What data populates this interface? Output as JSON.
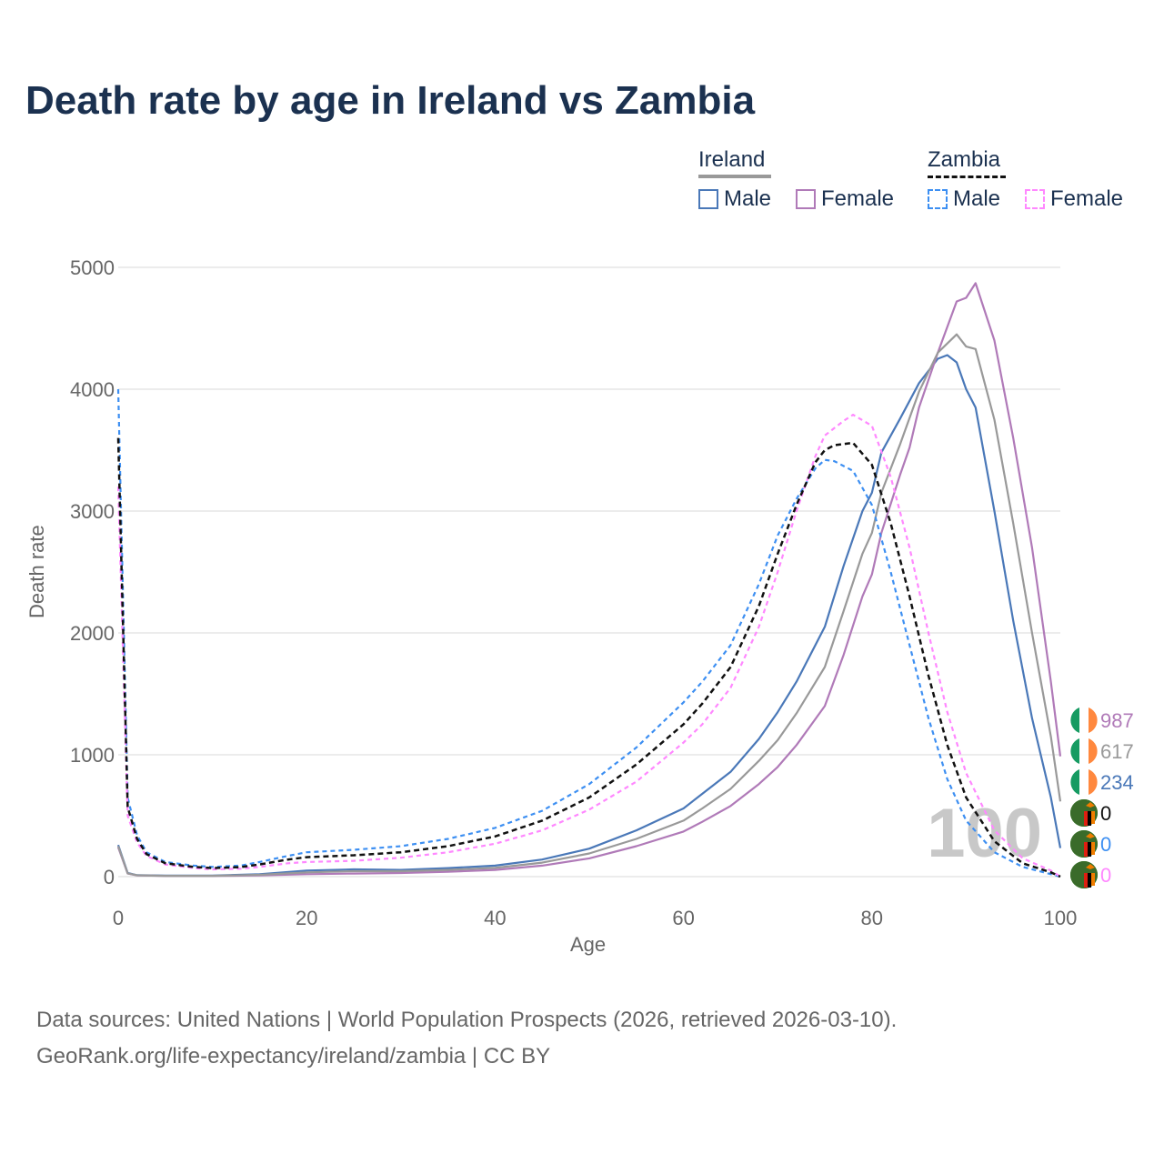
{
  "title": "Death rate by age in Ireland vs Zambia",
  "legend": {
    "ireland": {
      "label": "Ireland",
      "male": "Male",
      "female": "Female"
    },
    "zambia": {
      "label": "Zambia",
      "male": "Male",
      "female": "Female"
    }
  },
  "colors": {
    "ireland_male": "#4a78b8",
    "ireland_female": "#b07ab8",
    "ireland_total": "#999999",
    "zambia_male": "#3d8ff2",
    "zambia_female": "#ff88ff",
    "zambia_total": "#111111",
    "text": "#1b3150",
    "axis_text": "#666666",
    "grid": "#e6e6e6"
  },
  "end_labels": {
    "ireland_female": "987",
    "ireland_total": "617",
    "ireland_male": "234",
    "zambia_total": "0",
    "zambia_male": "0",
    "zambia_female": "0"
  },
  "year_watermark": "100",
  "source_line1": "Data sources: United Nations | World Population Prospects (2026, retrieved 2026-03-10).",
  "source_line2": "GeoRank.org/life-expectancy/ireland/zambia | CC BY",
  "chart_data": {
    "type": "line",
    "xlabel": "Age",
    "ylabel": "Death rate",
    "xlim": [
      0,
      100
    ],
    "ylim": [
      0,
      5000
    ],
    "x_ticks": [
      "0",
      "20",
      "40",
      "60",
      "80",
      "100"
    ],
    "y_ticks": [
      "0",
      "1000",
      "2000",
      "3000",
      "4000",
      "5000"
    ],
    "series": [
      {
        "name": "Ireland Male",
        "key": "ireland_male",
        "dash": false,
        "points": [
          [
            0,
            260
          ],
          [
            1,
            30
          ],
          [
            2,
            12
          ],
          [
            5,
            8
          ],
          [
            10,
            8
          ],
          [
            15,
            20
          ],
          [
            20,
            50
          ],
          [
            25,
            60
          ],
          [
            30,
            55
          ],
          [
            35,
            70
          ],
          [
            40,
            90
          ],
          [
            45,
            140
          ],
          [
            50,
            230
          ],
          [
            55,
            380
          ],
          [
            60,
            560
          ],
          [
            62,
            680
          ],
          [
            65,
            860
          ],
          [
            68,
            1130
          ],
          [
            70,
            1350
          ],
          [
            72,
            1600
          ],
          [
            75,
            2050
          ],
          [
            77,
            2550
          ],
          [
            79,
            3000
          ],
          [
            80,
            3150
          ],
          [
            81,
            3480
          ],
          [
            83,
            3760
          ],
          [
            85,
            4050
          ],
          [
            87,
            4250
          ],
          [
            88,
            4280
          ],
          [
            89,
            4220
          ],
          [
            90,
            4000
          ],
          [
            91,
            3850
          ],
          [
            93,
            3000
          ],
          [
            95,
            2100
          ],
          [
            97,
            1300
          ],
          [
            99,
            650
          ],
          [
            100,
            234
          ]
        ]
      },
      {
        "name": "Ireland Female",
        "key": "ireland_female",
        "dash": false,
        "points": [
          [
            0,
            240
          ],
          [
            1,
            25
          ],
          [
            2,
            10
          ],
          [
            5,
            6
          ],
          [
            10,
            6
          ],
          [
            15,
            10
          ],
          [
            20,
            20
          ],
          [
            25,
            25
          ],
          [
            30,
            30
          ],
          [
            35,
            40
          ],
          [
            40,
            55
          ],
          [
            45,
            90
          ],
          [
            50,
            150
          ],
          [
            55,
            250
          ],
          [
            60,
            370
          ],
          [
            62,
            450
          ],
          [
            65,
            580
          ],
          [
            68,
            760
          ],
          [
            70,
            900
          ],
          [
            72,
            1080
          ],
          [
            75,
            1400
          ],
          [
            77,
            1820
          ],
          [
            79,
            2300
          ],
          [
            80,
            2480
          ],
          [
            81,
            2820
          ],
          [
            83,
            3300
          ],
          [
            84,
            3520
          ],
          [
            85,
            3850
          ],
          [
            87,
            4300
          ],
          [
            89,
            4720
          ],
          [
            90,
            4750
          ],
          [
            91,
            4870
          ],
          [
            93,
            4400
          ],
          [
            95,
            3600
          ],
          [
            97,
            2700
          ],
          [
            99,
            1600
          ],
          [
            100,
            987
          ]
        ]
      },
      {
        "name": "Ireland Total",
        "key": "ireland_total",
        "dash": false,
        "points": [
          [
            0,
            250
          ],
          [
            1,
            27
          ],
          [
            2,
            11
          ],
          [
            5,
            7
          ],
          [
            10,
            7
          ],
          [
            15,
            15
          ],
          [
            20,
            35
          ],
          [
            25,
            45
          ],
          [
            30,
            45
          ],
          [
            35,
            55
          ],
          [
            40,
            72
          ],
          [
            45,
            115
          ],
          [
            50,
            190
          ],
          [
            55,
            310
          ],
          [
            60,
            460
          ],
          [
            62,
            560
          ],
          [
            65,
            720
          ],
          [
            68,
            950
          ],
          [
            70,
            1120
          ],
          [
            72,
            1340
          ],
          [
            75,
            1720
          ],
          [
            77,
            2180
          ],
          [
            79,
            2650
          ],
          [
            80,
            2820
          ],
          [
            81,
            3150
          ],
          [
            83,
            3550
          ],
          [
            85,
            3980
          ],
          [
            87,
            4300
          ],
          [
            89,
            4450
          ],
          [
            90,
            4350
          ],
          [
            91,
            4330
          ],
          [
            93,
            3750
          ],
          [
            95,
            2900
          ],
          [
            97,
            2000
          ],
          [
            99,
            1150
          ],
          [
            100,
            617
          ]
        ]
      },
      {
        "name": "Zambia Male",
        "key": "zambia_male",
        "dash": true,
        "points": [
          [
            0,
            4000
          ],
          [
            1,
            650
          ],
          [
            2,
            340
          ],
          [
            3,
            200
          ],
          [
            5,
            120
          ],
          [
            8,
            90
          ],
          [
            10,
            80
          ],
          [
            13,
            90
          ],
          [
            15,
            120
          ],
          [
            18,
            170
          ],
          [
            20,
            200
          ],
          [
            25,
            220
          ],
          [
            30,
            250
          ],
          [
            35,
            310
          ],
          [
            40,
            400
          ],
          [
            45,
            540
          ],
          [
            50,
            760
          ],
          [
            55,
            1060
          ],
          [
            60,
            1430
          ],
          [
            62,
            1600
          ],
          [
            65,
            1900
          ],
          [
            68,
            2400
          ],
          [
            70,
            2800
          ],
          [
            72,
            3100
          ],
          [
            74,
            3350
          ],
          [
            75,
            3420
          ],
          [
            76,
            3410
          ],
          [
            78,
            3330
          ],
          [
            80,
            3050
          ],
          [
            82,
            2500
          ],
          [
            84,
            1900
          ],
          [
            86,
            1300
          ],
          [
            88,
            800
          ],
          [
            90,
            460
          ],
          [
            93,
            200
          ],
          [
            96,
            80
          ],
          [
            99,
            20
          ],
          [
            100,
            0
          ]
        ]
      },
      {
        "name": "Zambia Female",
        "key": "zambia_female",
        "dash": true,
        "points": [
          [
            0,
            3200
          ],
          [
            1,
            500
          ],
          [
            2,
            280
          ],
          [
            3,
            170
          ],
          [
            5,
            100
          ],
          [
            8,
            70
          ],
          [
            10,
            60
          ],
          [
            13,
            65
          ],
          [
            15,
            80
          ],
          [
            18,
            110
          ],
          [
            20,
            120
          ],
          [
            25,
            130
          ],
          [
            30,
            155
          ],
          [
            35,
            200
          ],
          [
            40,
            270
          ],
          [
            45,
            380
          ],
          [
            50,
            550
          ],
          [
            55,
            780
          ],
          [
            60,
            1100
          ],
          [
            62,
            1250
          ],
          [
            65,
            1550
          ],
          [
            68,
            2050
          ],
          [
            70,
            2500
          ],
          [
            72,
            3000
          ],
          [
            74,
            3450
          ],
          [
            75,
            3620
          ],
          [
            77,
            3740
          ],
          [
            78,
            3790
          ],
          [
            80,
            3700
          ],
          [
            82,
            3280
          ],
          [
            84,
            2700
          ],
          [
            86,
            2000
          ],
          [
            88,
            1350
          ],
          [
            90,
            850
          ],
          [
            93,
            380
          ],
          [
            96,
            150
          ],
          [
            99,
            50
          ],
          [
            100,
            0
          ]
        ]
      },
      {
        "name": "Zambia Total",
        "key": "zambia_total",
        "dash": true,
        "points": [
          [
            0,
            3600
          ],
          [
            1,
            570
          ],
          [
            2,
            310
          ],
          [
            3,
            185
          ],
          [
            5,
            110
          ],
          [
            8,
            80
          ],
          [
            10,
            70
          ],
          [
            13,
            78
          ],
          [
            15,
            100
          ],
          [
            18,
            140
          ],
          [
            20,
            160
          ],
          [
            25,
            175
          ],
          [
            30,
            200
          ],
          [
            35,
            250
          ],
          [
            40,
            330
          ],
          [
            45,
            460
          ],
          [
            50,
            650
          ],
          [
            55,
            920
          ],
          [
            60,
            1250
          ],
          [
            62,
            1420
          ],
          [
            65,
            1720
          ],
          [
            68,
            2220
          ],
          [
            70,
            2650
          ],
          [
            72,
            3050
          ],
          [
            74,
            3400
          ],
          [
            75,
            3500
          ],
          [
            76,
            3540
          ],
          [
            78,
            3560
          ],
          [
            80,
            3380
          ],
          [
            82,
            2900
          ],
          [
            84,
            2300
          ],
          [
            86,
            1650
          ],
          [
            88,
            1080
          ],
          [
            90,
            650
          ],
          [
            93,
            290
          ],
          [
            96,
            110
          ],
          [
            99,
            35
          ],
          [
            100,
            0
          ]
        ]
      }
    ]
  }
}
